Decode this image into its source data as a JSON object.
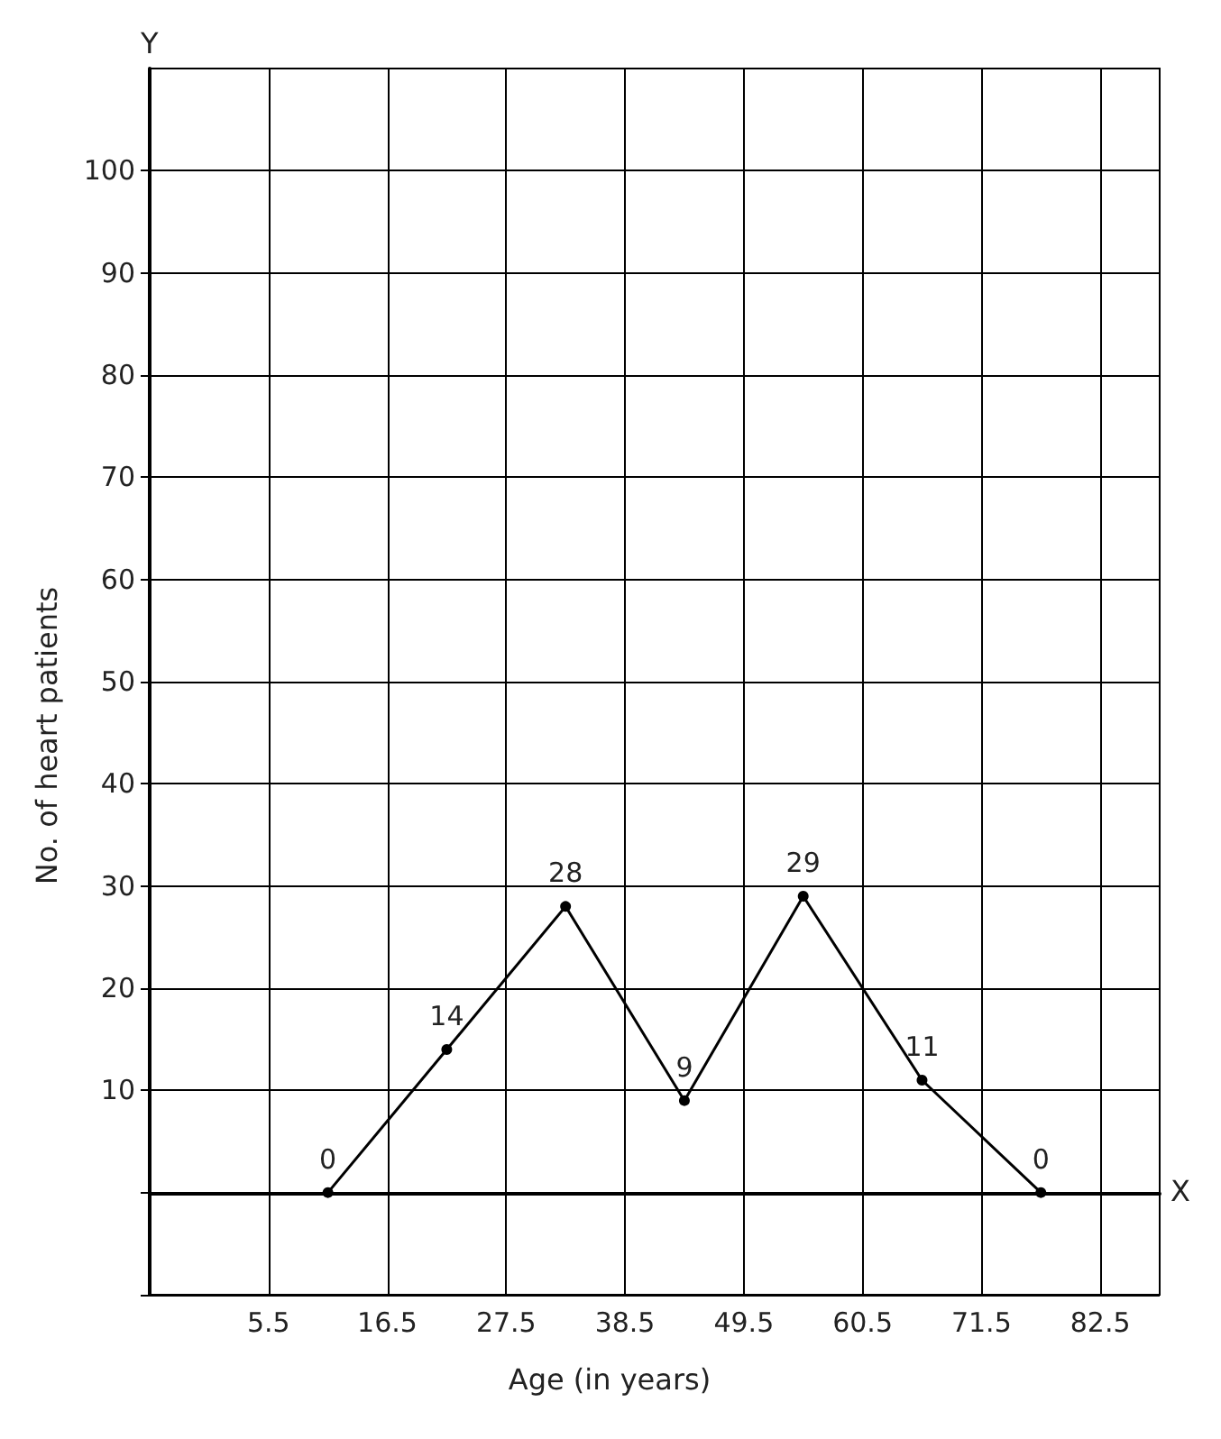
{
  "chart_data": {
    "type": "line",
    "xlabel": "Age (in years)",
    "ylabel": "No. of heart patients",
    "x": [
      11,
      22,
      33,
      44,
      55,
      66,
      77
    ],
    "series": [
      {
        "color": "#000000",
        "values": [
          0,
          14,
          28,
          9,
          29,
          11,
          0
        ]
      }
    ],
    "data_labels": true,
    "marker": "circle",
    "line_style": "solid",
    "grid": true,
    "xlim": [
      -5.5,
      88
    ],
    "xticks": [
      {
        "value": -5.5,
        "label": null
      },
      5.5,
      16.5,
      27.5,
      38.5,
      49.5,
      60.5,
      71.5,
      82.5
    ],
    "ylim": [
      -10,
      110
    ],
    "yticks": [
      {
        "value": -10,
        "label": null
      },
      {
        "value": 0,
        "label": null
      },
      10,
      20,
      30,
      40,
      50,
      60,
      70,
      80,
      90,
      100
    ],
    "annotations": [
      "Y",
      "X"
    ]
  }
}
